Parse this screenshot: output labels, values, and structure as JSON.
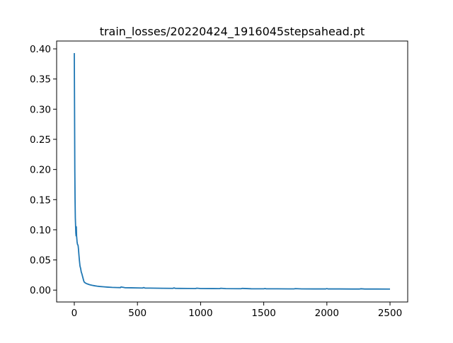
{
  "chart_data": {
    "type": "line",
    "title": "train_losses/20220424_1916045stepsahead.pt",
    "xlabel": "",
    "ylabel": "",
    "xlim": [
      -140,
      2640
    ],
    "ylim": [
      -0.0197,
      0.413
    ],
    "xticks": [
      0,
      500,
      1000,
      1500,
      2000,
      2500
    ],
    "xtick_labels": [
      "0",
      "500",
      "1000",
      "1500",
      "2000",
      "2500"
    ],
    "yticks": [
      0.0,
      0.05,
      0.1,
      0.15,
      0.2,
      0.25,
      0.3,
      0.35,
      0.4
    ],
    "ytick_labels": [
      "0.00",
      "0.05",
      "0.10",
      "0.15",
      "0.20",
      "0.25",
      "0.30",
      "0.35",
      "0.40"
    ],
    "grid": false,
    "legend": "none",
    "line_color": "#1f77b4",
    "series": [
      {
        "x": [
          0,
          2,
          4,
          6,
          8,
          10,
          12,
          14,
          16,
          18,
          20,
          22,
          25,
          28,
          30,
          33,
          36,
          40,
          45,
          50,
          55,
          60,
          65,
          70,
          75,
          80,
          90,
          100,
          120,
          140,
          160,
          180,
          200,
          230,
          260,
          300,
          340,
          365,
          370,
          400,
          450,
          500,
          540,
          550,
          560,
          600,
          700,
          780,
          790,
          800,
          900,
          960,
          970,
          1000,
          1100,
          1150,
          1160,
          1200,
          1300,
          1320,
          1330,
          1400,
          1500,
          1510,
          1520,
          1600,
          1700,
          1740,
          1750,
          1800,
          1900,
          1990,
          2000,
          2010,
          2100,
          2200,
          2260,
          2270,
          2300,
          2400,
          2500
        ],
        "y": [
          0.393,
          0.3,
          0.2,
          0.15,
          0.12,
          0.108,
          0.095,
          0.09,
          0.105,
          0.09,
          0.085,
          0.08,
          0.076,
          0.075,
          0.074,
          0.068,
          0.06,
          0.05,
          0.04,
          0.036,
          0.03,
          0.027,
          0.023,
          0.019,
          0.015,
          0.013,
          0.0115,
          0.0105,
          0.009,
          0.008,
          0.0072,
          0.0065,
          0.006,
          0.0055,
          0.005,
          0.0045,
          0.0042,
          0.0041,
          0.0052,
          0.004,
          0.0038,
          0.0036,
          0.0035,
          0.0042,
          0.0034,
          0.0033,
          0.003,
          0.0029,
          0.0036,
          0.0029,
          0.0027,
          0.0026,
          0.0032,
          0.0026,
          0.0025,
          0.0024,
          0.003,
          0.0024,
          0.0023,
          0.0023,
          0.0028,
          0.0022,
          0.0021,
          0.0026,
          0.0021,
          0.0021,
          0.002,
          0.002,
          0.0024,
          0.002,
          0.0019,
          0.0019,
          0.0025,
          0.0019,
          0.0019,
          0.0018,
          0.0018,
          0.0022,
          0.0018,
          0.0018,
          0.0017
        ]
      }
    ]
  }
}
